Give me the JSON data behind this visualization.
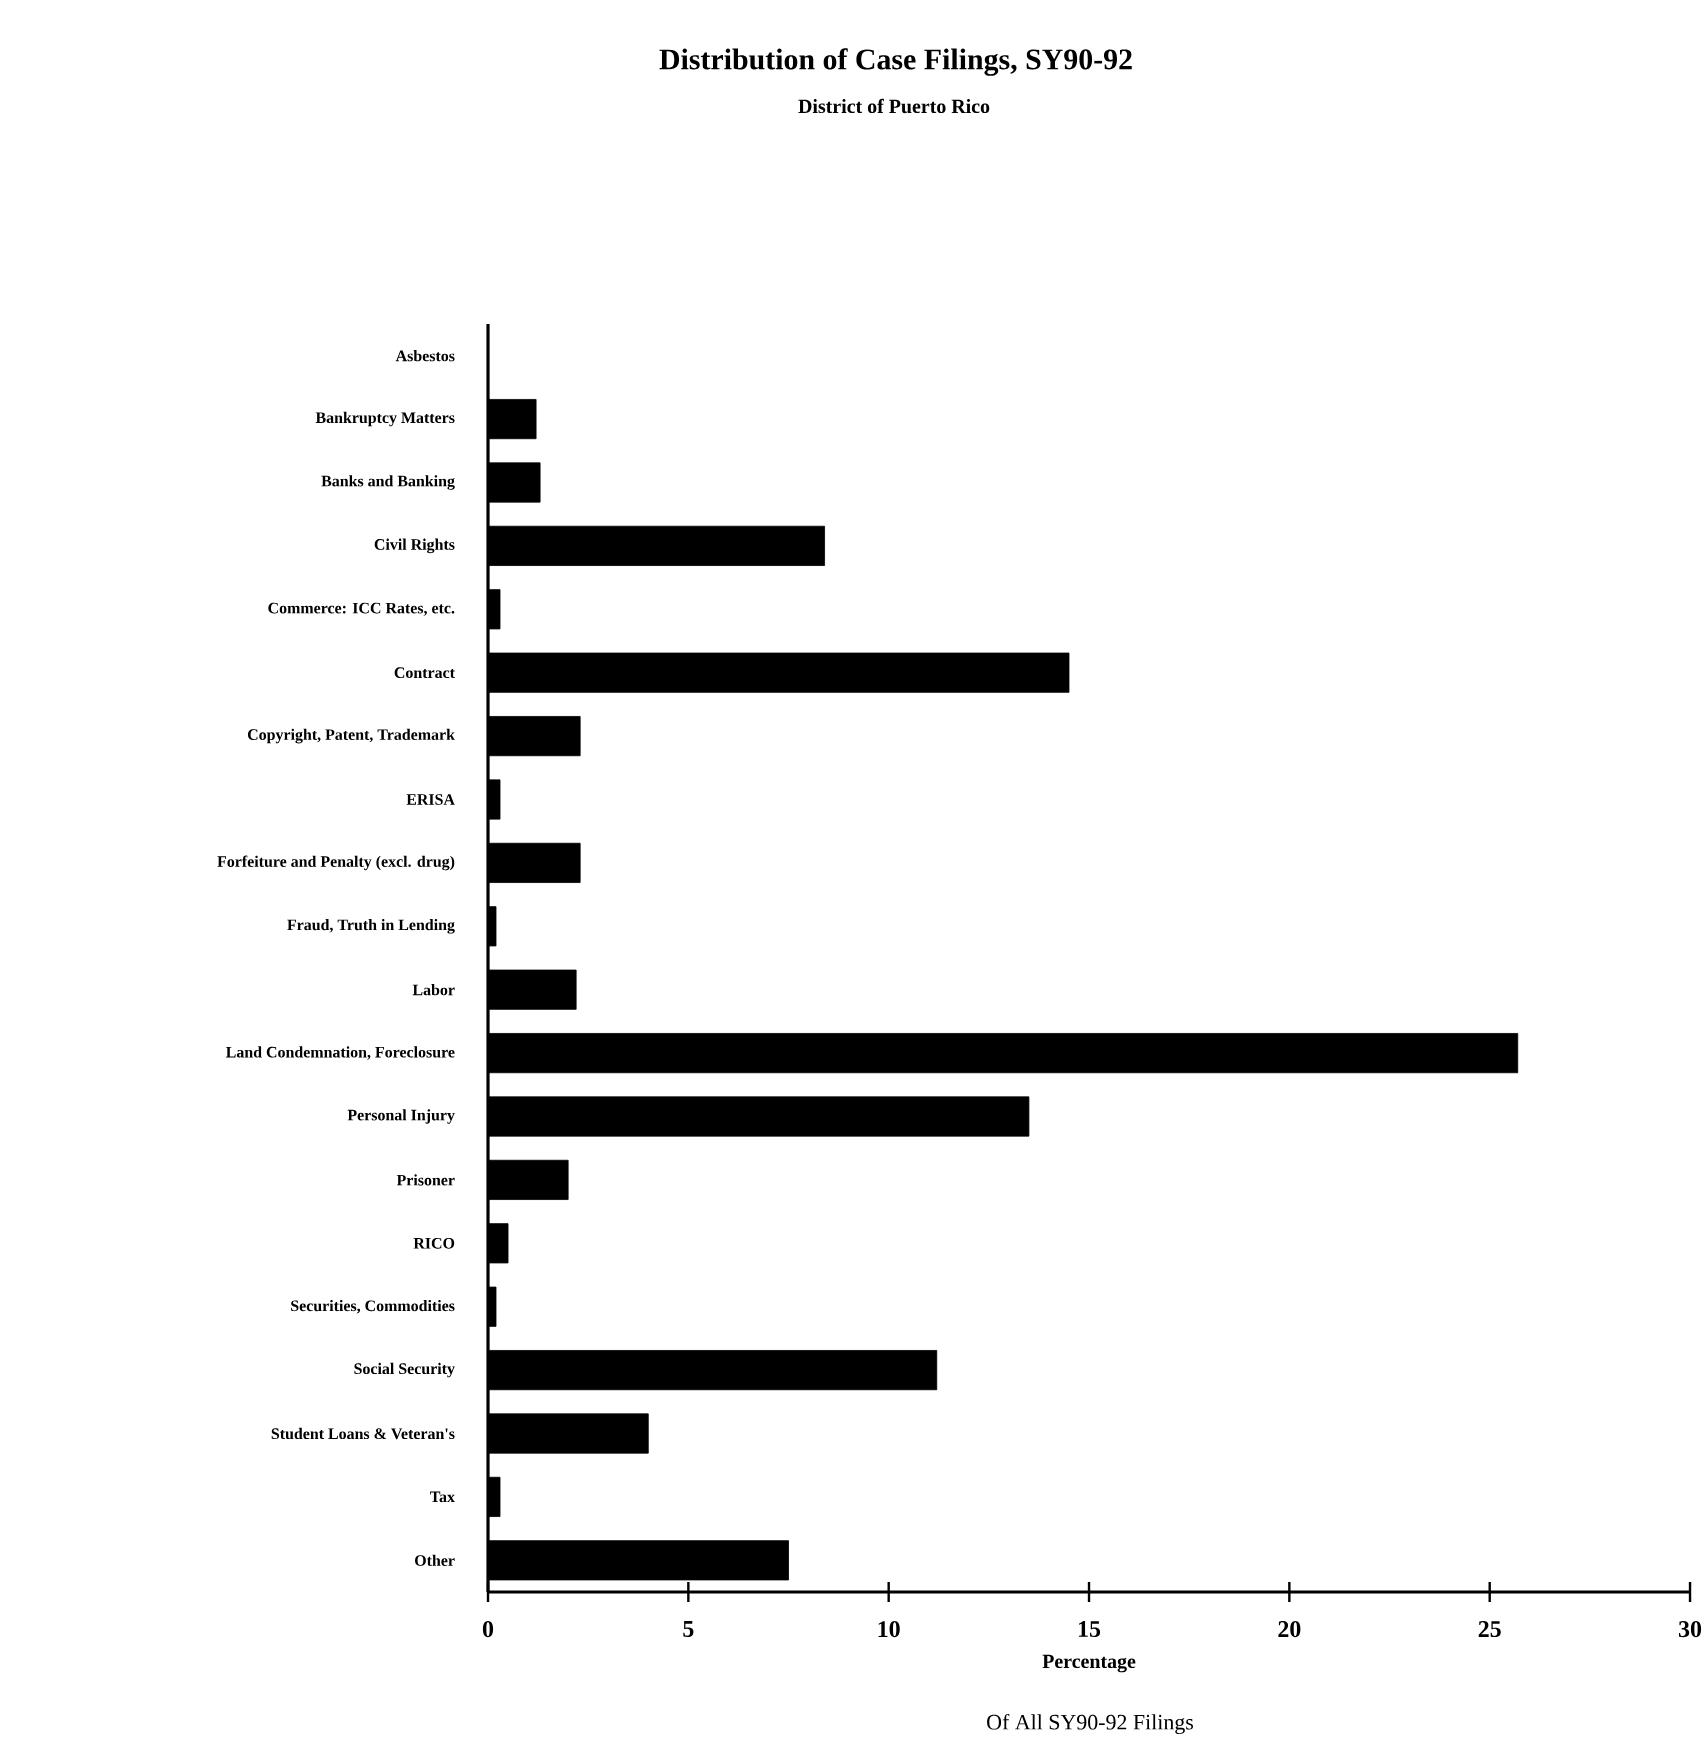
{
  "chart_data": {
    "type": "bar",
    "orientation": "horizontal",
    "title": "Distribution of Case Filings, SY90-92",
    "subtitle": "District of Puerto Rico",
    "xlabel": "Percentage",
    "annotations": [
      "Of All SY90-92 Filings"
    ],
    "categories": [
      "Asbestos",
      "Bankruptcy Matters",
      "Banks and Banking",
      "Civil Rights",
      "Commerce: ICC Rates, etc.",
      "Contract",
      "Copyright, Patent, Trademark",
      "ERISA",
      "Forfeiture and Penalty (excl. drug)",
      "Fraud, Truth in Lending",
      "Labor",
      "Land Condemnation, Foreclosure",
      "Personal Injury",
      "Prisoner",
      "RICO",
      "Securities, Commodities",
      "Social Security",
      "Student Loans & Veteran's",
      "Tax",
      "Other"
    ],
    "values": [
      0,
      1.2,
      1.3,
      8.4,
      0.3,
      14.5,
      2.3,
      0.3,
      2.3,
      0.2,
      2.2,
      25.7,
      13.5,
      2.0,
      0.5,
      0.2,
      11.2,
      4.0,
      0.3,
      7.5
    ],
    "color": "#000000",
    "xlim": [
      0,
      30
    ],
    "xticks": [
      0,
      5,
      10,
      15,
      20,
      25,
      30
    ]
  }
}
